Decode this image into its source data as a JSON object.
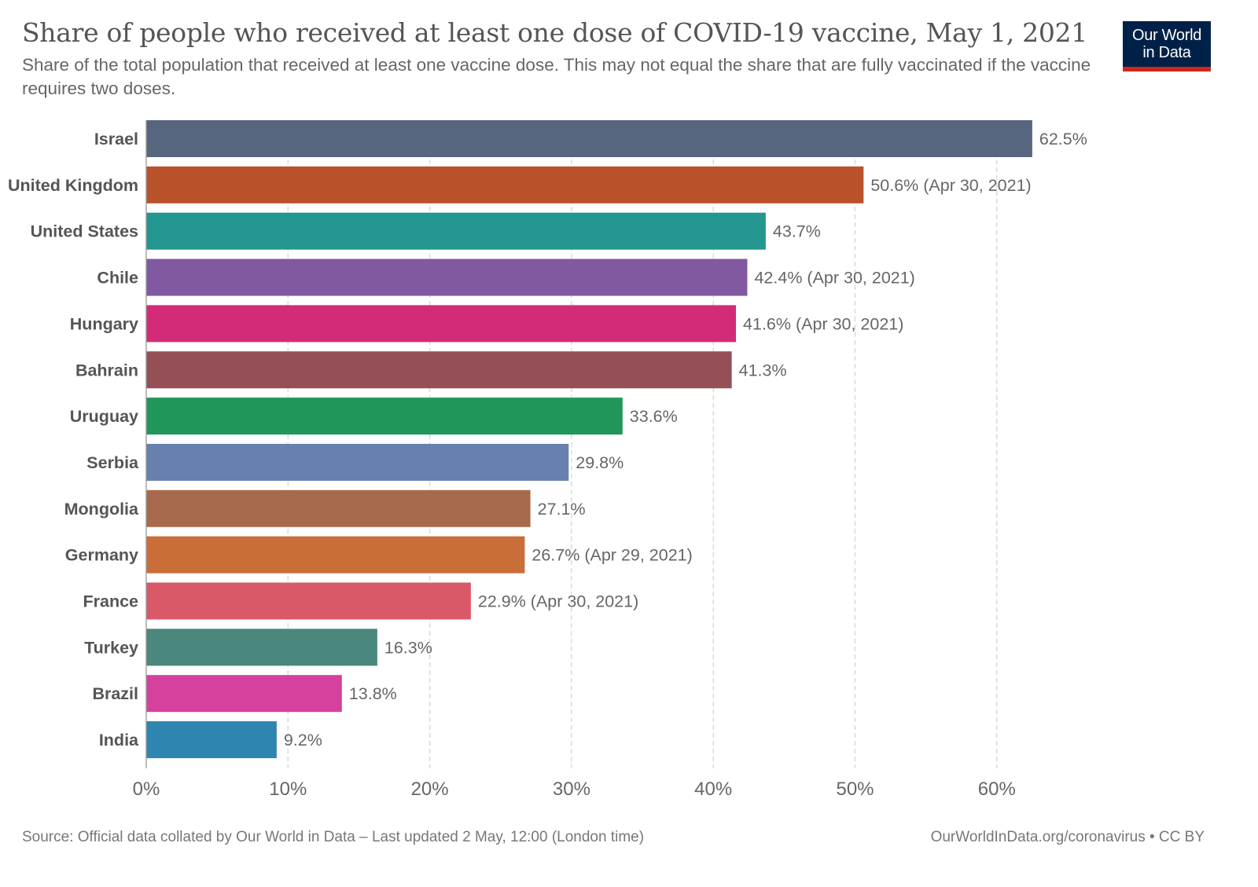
{
  "title": "Share of people who received at least one dose of COVID-19 vaccine, May 1, 2021",
  "subtitle": "Share of the total population that received at least one vaccine dose. This may not equal the share that are fully vaccinated if the vaccine requires two doses.",
  "logo": {
    "text": "Our World in Data",
    "background": "#002147",
    "accent": "#ce261e"
  },
  "footer": {
    "source": "Source: Official data collated by Our World in Data – Last updated 2 May, 12:00 (London time)",
    "link": "OurWorldInData.org/coronavirus • CC BY"
  },
  "chart_data": {
    "type": "bar",
    "orientation": "horizontal",
    "categories": [
      "Israel",
      "United Kingdom",
      "United States",
      "Chile",
      "Hungary",
      "Bahrain",
      "Uruguay",
      "Serbia",
      "Mongolia",
      "Germany",
      "France",
      "Turkey",
      "Brazil",
      "India"
    ],
    "values": [
      62.5,
      50.6,
      43.7,
      42.4,
      41.6,
      41.3,
      33.6,
      29.8,
      27.1,
      26.7,
      22.9,
      16.3,
      13.8,
      9.2
    ],
    "value_labels": [
      "62.5%",
      "50.6% (Apr 30, 2021)",
      "43.7%",
      "42.4% (Apr 30, 2021)",
      "41.6% (Apr 30, 2021)",
      "41.3%",
      "33.6%",
      "29.8%",
      "27.1%",
      "26.7% (Apr 29, 2021)",
      "22.9% (Apr 30, 2021)",
      "16.3%",
      "13.8%",
      "9.2%"
    ],
    "colors": [
      "#57667e",
      "#b9522b",
      "#22968f",
      "#8159a1",
      "#d42b78",
      "#954f57",
      "#21965a",
      "#6880ad",
      "#a86a4c",
      "#c96e38",
      "#da5969",
      "#4a877c",
      "#d5419d",
      "#2e86b0"
    ],
    "xlim": [
      0,
      60
    ],
    "x_ticks": [
      0,
      10,
      20,
      30,
      40,
      50,
      60
    ],
    "x_tick_labels": [
      "0%",
      "10%",
      "20%",
      "30%",
      "40%",
      "50%",
      "60%"
    ],
    "grid": "vertical dashed",
    "xlabel": "",
    "ylabel": ""
  }
}
